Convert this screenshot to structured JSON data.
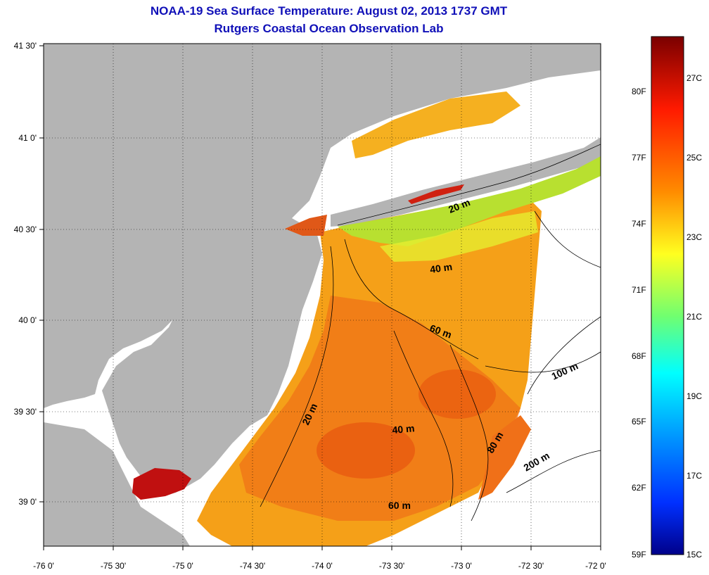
{
  "title": "NOAA-19 Sea Surface Temperature:  August 02, 2013 1737 GMT",
  "subtitle": "Rutgers Coastal Ocean Observation Lab",
  "lat_ticks": [
    "41 30'",
    "41 0'",
    "40 30'",
    "40 0'",
    "39 30'",
    "39 0'"
  ],
  "lon_ticks": [
    "-76 0'",
    "-75 30'",
    "-75 0'",
    "-74 30'",
    "-74 0'",
    "-73 30'",
    "-73 0'",
    "-72 30'",
    "-72 0'"
  ],
  "colorbar": {
    "fahrenheit": [
      "80F",
      "77F",
      "74F",
      "71F",
      "68F",
      "65F",
      "62F",
      "59F"
    ],
    "celsius": [
      "27C",
      "25C",
      "23C",
      "21C",
      "19C",
      "17C",
      "15C"
    ]
  },
  "contours": [
    "20 m",
    "40 m",
    "60 m",
    "20 m",
    "40 m",
    "80 m",
    "100 m",
    "200 m",
    "60 m"
  ],
  "colors": {
    "land": "#b4b4b4",
    "title": "#1010b8",
    "warm": "#f07818",
    "hot": "#c01010",
    "cool": "#b0e030"
  }
}
